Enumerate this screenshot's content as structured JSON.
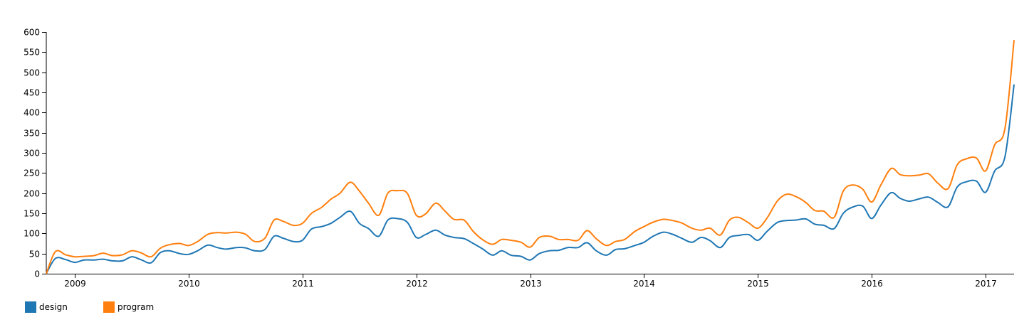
{
  "chart_data": {
    "type": "line",
    "title": "",
    "xlabel": "",
    "ylabel": "",
    "ylim": [
      0,
      600
    ],
    "yticks": [
      0,
      50,
      100,
      150,
      200,
      250,
      300,
      350,
      400,
      450,
      500,
      550,
      600
    ],
    "xlim": [
      2008.75,
      2017.25
    ],
    "xticks": [
      2009,
      2010,
      2011,
      2012,
      2013,
      2014,
      2015,
      2016,
      2017
    ],
    "x": [
      2008.75,
      2008.83,
      2008.92,
      2009.0,
      2009.08,
      2009.17,
      2009.25,
      2009.33,
      2009.42,
      2009.5,
      2009.58,
      2009.67,
      2009.75,
      2009.83,
      2009.92,
      2010.0,
      2010.08,
      2010.17,
      2010.25,
      2010.33,
      2010.42,
      2010.5,
      2010.58,
      2010.67,
      2010.75,
      2010.83,
      2010.92,
      2011.0,
      2011.08,
      2011.17,
      2011.25,
      2011.33,
      2011.42,
      2011.5,
      2011.58,
      2011.67,
      2011.75,
      2011.83,
      2011.92,
      2012.0,
      2012.08,
      2012.17,
      2012.25,
      2012.33,
      2012.42,
      2012.5,
      2012.58,
      2012.67,
      2012.75,
      2012.83,
      2012.92,
      2013.0,
      2013.08,
      2013.17,
      2013.25,
      2013.33,
      2013.42,
      2013.5,
      2013.58,
      2013.67,
      2013.75,
      2013.83,
      2013.92,
      2014.0,
      2014.08,
      2014.17,
      2014.25,
      2014.33,
      2014.42,
      2014.5,
      2014.58,
      2014.67,
      2014.75,
      2014.83,
      2014.92,
      2015.0,
      2015.08,
      2015.17,
      2015.25,
      2015.33,
      2015.42,
      2015.5,
      2015.58,
      2015.67,
      2015.75,
      2015.83,
      2015.92,
      2016.0,
      2016.08,
      2016.17,
      2016.25,
      2016.33,
      2016.42,
      2016.5,
      2016.58,
      2016.67,
      2016.75,
      2016.83,
      2016.92,
      2017.0,
      2017.08,
      2017.17,
      2017.25
    ],
    "series": [
      {
        "name": "design",
        "color": "#1f77b4",
        "values": [
          0,
          38,
          35,
          28,
          34,
          34,
          36,
          32,
          32,
          42,
          35,
          27,
          52,
          57,
          50,
          48,
          57,
          71,
          65,
          61,
          65,
          64,
          57,
          60,
          93,
          88,
          80,
          83,
          111,
          117,
          125,
          140,
          155,
          125,
          112,
          93,
          133,
          137,
          128,
          90,
          97,
          108,
          96,
          90,
          87,
          75,
          62,
          46,
          57,
          46,
          43,
          34,
          50,
          57,
          58,
          65,
          65,
          77,
          57,
          46,
          60,
          62,
          70,
          78,
          93,
          103,
          98,
          88,
          78,
          90,
          82,
          65,
          90,
          95,
          97,
          83,
          105,
          127,
          132,
          133,
          136,
          123,
          120,
          112,
          150,
          165,
          168,
          137,
          170,
          201,
          187,
          180,
          186,
          190,
          177,
          166,
          215,
          228,
          230,
          202,
          255,
          290,
          470
        ]
      },
      {
        "name": "program",
        "color": "#ff7f0e",
        "values": [
          0,
          55,
          47,
          42,
          43,
          45,
          51,
          45,
          47,
          57,
          52,
          42,
          63,
          72,
          75,
          70,
          80,
          98,
          102,
          101,
          103,
          98,
          80,
          88,
          133,
          130,
          120,
          125,
          150,
          165,
          185,
          200,
          227,
          205,
          175,
          145,
          200,
          206,
          200,
          145,
          148,
          175,
          156,
          135,
          133,
          105,
          85,
          73,
          85,
          83,
          78,
          66,
          90,
          93,
          85,
          85,
          83,
          107,
          87,
          70,
          80,
          85,
          105,
          117,
          128,
          135,
          132,
          126,
          113,
          108,
          113,
          96,
          133,
          140,
          126,
          113,
          138,
          180,
          197,
          192,
          177,
          157,
          155,
          140,
          205,
          220,
          210,
          178,
          220,
          261,
          246,
          243,
          245,
          248,
          225,
          211,
          270,
          285,
          287,
          255,
          320,
          360,
          580
        ]
      }
    ],
    "legend": [
      {
        "label": "design",
        "color": "#1f77b4"
      },
      {
        "label": "program",
        "color": "#ff7f0e"
      }
    ]
  }
}
